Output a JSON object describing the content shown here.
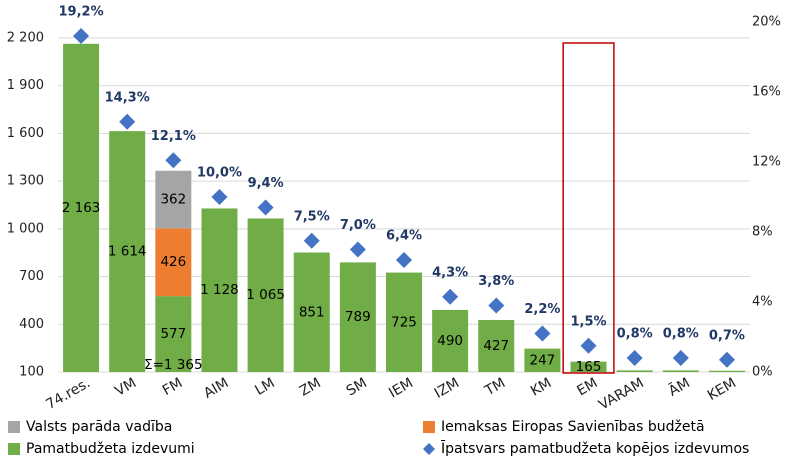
{
  "chart_data": {
    "type": "bar",
    "stacked": true,
    "categories": [
      "74.res.",
      "VM",
      "FM",
      "AIM",
      "LM",
      "ZM",
      "SM",
      "IEM",
      "IZM",
      "TM",
      "KM",
      "EM",
      "VARAM",
      "ĀM",
      "KEM"
    ],
    "series": [
      {
        "name": "Pamatbudžeta izdevumi",
        "color": "#70ad47",
        "values": [
          2163,
          1614,
          577,
          1128,
          1065,
          851,
          789,
          725,
          490,
          427,
          247,
          165,
          110,
          110,
          108
        ],
        "value_labels": [
          "2 163",
          "1 614",
          "577",
          "1 128",
          "1 065",
          "851",
          "789",
          "725",
          "490",
          "427",
          "247",
          "165",
          null,
          null,
          null
        ]
      },
      {
        "name": "Iemaksas Eiropas Savienības budžetā",
        "color": "#ed7d31",
        "values": [
          null,
          null,
          426,
          null,
          null,
          null,
          null,
          null,
          null,
          null,
          null,
          null,
          null,
          null,
          null
        ],
        "value_labels": [
          null,
          null,
          "426",
          null,
          null,
          null,
          null,
          null,
          null,
          null,
          null,
          null,
          null,
          null,
          null
        ]
      },
      {
        "name": "Valsts parāda vadība",
        "color": "#a5a5a5",
        "values": [
          null,
          null,
          362,
          null,
          null,
          null,
          null,
          null,
          null,
          null,
          null,
          null,
          null,
          null,
          null
        ],
        "value_labels": [
          null,
          null,
          "362",
          null,
          null,
          null,
          null,
          null,
          null,
          null,
          null,
          null,
          null,
          null,
          null
        ]
      },
      {
        "name": "Īpatsvars pamatbudžeta kopējos izdevumos",
        "color": "#4472c4",
        "type": "scatter",
        "marker": "diamond",
        "axis": "y2",
        "values": [
          19.2,
          14.3,
          12.1,
          10.0,
          9.4,
          7.5,
          7.0,
          6.4,
          4.3,
          3.8,
          2.2,
          1.5,
          0.8,
          0.8,
          0.7
        ],
        "value_labels": [
          "19,2%",
          "14,3%",
          "12,1%",
          "10,0%",
          "9,4%",
          "7,5%",
          "7,0%",
          "6,4%",
          "4,3%",
          "3,8%",
          "2,2%",
          "1,5%",
          "0,8%",
          "0,8%",
          "0,7%"
        ]
      }
    ],
    "annotations": [
      {
        "text": "Σ=1 365",
        "category": 2
      }
    ],
    "ylim": [
      100,
      2300
    ],
    "yticks": [
      100,
      400,
      700,
      {
        "value": 1000,
        "label": "1 000"
      },
      {
        "value": 1300,
        "label": "1 300"
      },
      {
        "value": 1600,
        "label": "1 600"
      },
      {
        "value": 1900,
        "label": "1 900"
      },
      {
        "value": 2200,
        "label": "2 200"
      }
    ],
    "y2lim": [
      0,
      20
    ],
    "y2ticks": [
      {
        "value": 0,
        "label": "0%"
      },
      {
        "value": 4,
        "label": "4%"
      },
      {
        "value": 8,
        "label": "8%"
      },
      {
        "value": 12,
        "label": "12%"
      },
      {
        "value": 16,
        "label": "16%"
      },
      {
        "value": 20,
        "label": "20%"
      }
    ],
    "grid": true
  }
}
